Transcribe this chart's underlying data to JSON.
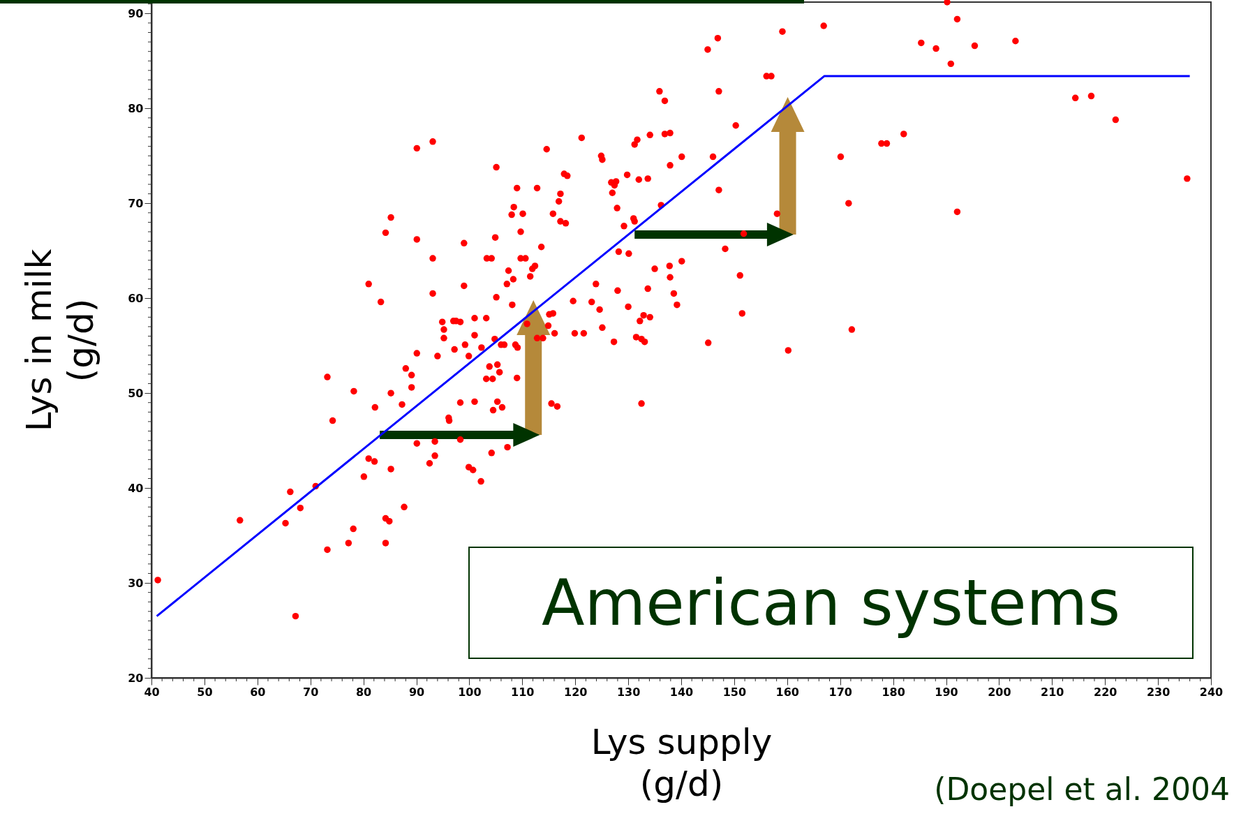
{
  "chart_data": {
    "type": "scatter",
    "xlabel": "Lys supply\n(g/d)",
    "ylabel": "Lys in milk\n(g/d)",
    "annotations": [
      "American systems",
      "(Doepel et al. 2004"
    ],
    "xlim": [
      40,
      240
    ],
    "ylim": [
      20,
      91.2
    ],
    "xticks": [
      40,
      {
        "value": 42,
        "label": null
      },
      {
        "value": 44,
        "label": null
      },
      {
        "value": 46,
        "label": null
      },
      {
        "value": 48,
        "label": null
      },
      50,
      {
        "value": 52,
        "label": null
      },
      {
        "value": 54,
        "label": null
      },
      {
        "value": 56,
        "label": null
      },
      {
        "value": 58,
        "label": null
      },
      60,
      {
        "value": 62,
        "label": null
      },
      {
        "value": 64,
        "label": null
      },
      {
        "value": 66,
        "label": null
      },
      {
        "value": 68,
        "label": null
      },
      70,
      {
        "value": 72,
        "label": null
      },
      {
        "value": 74,
        "label": null
      },
      {
        "value": 76,
        "label": null
      },
      {
        "value": 78,
        "label": null
      },
      80,
      {
        "value": 82,
        "label": null
      },
      {
        "value": 84,
        "label": null
      },
      {
        "value": 86,
        "label": null
      },
      {
        "value": 88,
        "label": null
      },
      90,
      {
        "value": 92,
        "label": null
      },
      {
        "value": 94,
        "label": null
      },
      {
        "value": 96,
        "label": null
      },
      {
        "value": 98,
        "label": null
      },
      100,
      {
        "value": 102,
        "label": null
      },
      {
        "value": 104,
        "label": null
      },
      {
        "value": 106,
        "label": null
      },
      {
        "value": 108,
        "label": null
      },
      110,
      {
        "value": 112,
        "label": null
      },
      {
        "value": 114,
        "label": null
      },
      {
        "value": 116,
        "label": null
      },
      {
        "value": 118,
        "label": null
      },
      120,
      {
        "value": 122,
        "label": null
      },
      {
        "value": 124,
        "label": null
      },
      {
        "value": 126,
        "label": null
      },
      {
        "value": 128,
        "label": null
      },
      130,
      {
        "value": 132,
        "label": null
      },
      {
        "value": 134,
        "label": null
      },
      {
        "value": 136,
        "label": null
      },
      {
        "value": 138,
        "label": null
      },
      140,
      {
        "value": 142,
        "label": null
      },
      {
        "value": 144,
        "label": null
      },
      {
        "value": 146,
        "label": null
      },
      {
        "value": 148,
        "label": null
      },
      150,
      {
        "value": 152,
        "label": null
      },
      {
        "value": 154,
        "label": null
      },
      {
        "value": 156,
        "label": null
      },
      {
        "value": 158,
        "label": null
      },
      160,
      {
        "value": 162,
        "label": null
      },
      {
        "value": 164,
        "label": null
      },
      {
        "value": 166,
        "label": null
      },
      {
        "value": 168,
        "label": null
      },
      170,
      {
        "value": 172,
        "label": null
      },
      {
        "value": 174,
        "label": null
      },
      {
        "value": 176,
        "label": null
      },
      {
        "value": 178,
        "label": null
      },
      180,
      {
        "value": 182,
        "label": null
      },
      {
        "value": 184,
        "label": null
      },
      {
        "value": 186,
        "label": null
      },
      {
        "value": 188,
        "label": null
      },
      190,
      {
        "value": 192,
        "label": null
      },
      {
        "value": 194,
        "label": null
      },
      {
        "value": 196,
        "label": null
      },
      {
        "value": 198,
        "label": null
      },
      200,
      {
        "value": 202,
        "label": null
      },
      {
        "value": 204,
        "label": null
      },
      {
        "value": 206,
        "label": null
      },
      {
        "value": 208,
        "label": null
      },
      210,
      {
        "value": 212,
        "label": null
      },
      {
        "value": 214,
        "label": null
      },
      {
        "value": 216,
        "label": null
      },
      {
        "value": 218,
        "label": null
      },
      220,
      {
        "value": 222,
        "label": null
      },
      {
        "value": 224,
        "label": null
      },
      {
        "value": 226,
        "label": null
      },
      {
        "value": 228,
        "label": null
      },
      230,
      {
        "value": 232,
        "label": null
      },
      {
        "value": 234,
        "label": null
      },
      {
        "value": 236,
        "label": null
      },
      {
        "value": 238,
        "label": null
      },
      240
    ],
    "yticks": [
      20,
      {
        "value": 21,
        "label": null
      },
      {
        "value": 22,
        "label": null
      },
      {
        "value": 23,
        "label": null
      },
      {
        "value": 24,
        "label": null
      },
      {
        "value": 25,
        "label": null
      },
      {
        "value": 26,
        "label": null
      },
      {
        "value": 27,
        "label": null
      },
      {
        "value": 28,
        "label": null
      },
      {
        "value": 29,
        "label": null
      },
      30,
      {
        "value": 31,
        "label": null
      },
      {
        "value": 32,
        "label": null
      },
      {
        "value": 33,
        "label": null
      },
      {
        "value": 34,
        "label": null
      },
      {
        "value": 35,
        "label": null
      },
      {
        "value": 36,
        "label": null
      },
      {
        "value": 37,
        "label": null
      },
      {
        "value": 38,
        "label": null
      },
      {
        "value": 39,
        "label": null
      },
      40,
      {
        "value": 41,
        "label": null
      },
      {
        "value": 42,
        "label": null
      },
      {
        "value": 43,
        "label": null
      },
      {
        "value": 44,
        "label": null
      },
      {
        "value": 45,
        "label": null
      },
      {
        "value": 46,
        "label": null
      },
      {
        "value": 47,
        "label": null
      },
      {
        "value": 48,
        "label": null
      },
      {
        "value": 49,
        "label": null
      },
      50,
      {
        "value": 51,
        "label": null
      },
      {
        "value": 52,
        "label": null
      },
      {
        "value": 53,
        "label": null
      },
      {
        "value": 54,
        "label": null
      },
      {
        "value": 55,
        "label": null
      },
      {
        "value": 56,
        "label": null
      },
      {
        "value": 57,
        "label": null
      },
      {
        "value": 58,
        "label": null
      },
      {
        "value": 59,
        "label": null
      },
      60,
      {
        "value": 61,
        "label": null
      },
      {
        "value": 62,
        "label": null
      },
      {
        "value": 63,
        "label": null
      },
      {
        "value": 64,
        "label": null
      },
      {
        "value": 65,
        "label": null
      },
      {
        "value": 66,
        "label": null
      },
      {
        "value": 67,
        "label": null
      },
      {
        "value": 68,
        "label": null
      },
      {
        "value": 69,
        "label": null
      },
      70,
      {
        "value": 71,
        "label": null
      },
      {
        "value": 72,
        "label": null
      },
      {
        "value": 73,
        "label": null
      },
      {
        "value": 74,
        "label": null
      },
      {
        "value": 75,
        "label": null
      },
      {
        "value": 76,
        "label": null
      },
      {
        "value": 77,
        "label": null
      },
      {
        "value": 78,
        "label": null
      },
      {
        "value": 79,
        "label": null
      },
      80,
      {
        "value": 81,
        "label": null
      },
      {
        "value": 82,
        "label": null
      },
      {
        "value": 83,
        "label": null
      },
      {
        "value": 84,
        "label": null
      },
      {
        "value": 85,
        "label": null
      },
      {
        "value": 86,
        "label": null
      },
      {
        "value": 87,
        "label": null
      },
      {
        "value": 88,
        "label": null
      },
      {
        "value": 89,
        "label": null
      },
      90,
      {
        "value": 91,
        "label": null
      }
    ],
    "series": [
      {
        "marker": "circle",
        "color": "#ff0000",
        "x": [
          41.2,
          56.7,
          65.3,
          66.2,
          67.2,
          68.1,
          71.0,
          73.2,
          73.2,
          74.2,
          77.2,
          78.1,
          78.2,
          80.1,
          81.0,
          81.0,
          82.1,
          82.2,
          83.3,
          84.2,
          85.2,
          84.2,
          84.9,
          84.2,
          85.2,
          85.2,
          87.3,
          87.7,
          88.0,
          89.1,
          89.1,
          90.1,
          90.1,
          90.1,
          90.1,
          92.5,
          93.1,
          93.1,
          93.1,
          93.5,
          93.5,
          94.0,
          94.9,
          95.2,
          95.2,
          96.1,
          96.2,
          97.0,
          97.2,
          97.5,
          98.3,
          98.3,
          98.3,
          99.0,
          99.0,
          99.2,
          99.9,
          99.9,
          100.7,
          101.0,
          101.0,
          101.0,
          102.2,
          102.3,
          103.2,
          103.3,
          103.2,
          103.8,
          104.2,
          104.2,
          104.4,
          104.5,
          104.8,
          104.9,
          105.1,
          105.1,
          105.3,
          105.3,
          105.7,
          106.0,
          106.2,
          106.6,
          107.1,
          107.2,
          107.4,
          108.0,
          108.1,
          108.3,
          108.4,
          108.7,
          109.0,
          109.0,
          109.1,
          109.7,
          109.7,
          110.1,
          110.6,
          110.9,
          111.5,
          111.9,
          112.4,
          112.8,
          112.8,
          113.6,
          113.9,
          114.6,
          114.9,
          115.1,
          115.5,
          115.8,
          115.8,
          116.1,
          116.6,
          116.9,
          117.2,
          117.2,
          117.9,
          118.2,
          118.5,
          119.6,
          119.9,
          121.2,
          121.6,
          123.1,
          123.9,
          124.6,
          124.9,
          125.1,
          125.1,
          126.8,
          127.0,
          127.3,
          127.4,
          127.7,
          127.9,
          128.0,
          128.2,
          129.2,
          129.8,
          130.0,
          130.1,
          131.0,
          131.2,
          131.2,
          131.5,
          131.7,
          132.0,
          132.2,
          132.5,
          132.5,
          132.9,
          133.1,
          133.7,
          133.7,
          134.1,
          134.1,
          135.0,
          135.9,
          136.2,
          136.9,
          136.9,
          137.9,
          137.9,
          137.8,
          137.9,
          138.6,
          139.2,
          140.1,
          140.1,
          145.0,
          145.1,
          146.0,
          146.9,
          147.1,
          147.1,
          148.3,
          150.3,
          151.1,
          151.5,
          151.8,
          156.1,
          157.0,
          158.1,
          159.1,
          160.2,
          166.9,
          170.1,
          171.6,
          172.2,
          177.8,
          178.8,
          182.0,
          185.3,
          188.1,
          190.2,
          190.9,
          192.1,
          192.1,
          195.4,
          203.1,
          214.4,
          217.4,
          222.0,
          235.5
        ],
        "values": [
          30.3,
          36.6,
          36.3,
          39.6,
          26.5,
          37.9,
          40.2,
          33.5,
          51.7,
          47.1,
          34.2,
          35.7,
          50.2,
          41.2,
          43.1,
          61.5,
          42.8,
          48.5,
          59.6,
          66.9,
          68.5,
          36.8,
          36.5,
          34.2,
          42.0,
          50.0,
          48.8,
          38.0,
          52.6,
          51.9,
          50.6,
          75.8,
          66.2,
          54.2,
          44.7,
          42.6,
          76.5,
          64.2,
          60.5,
          44.9,
          43.4,
          53.9,
          57.5,
          56.7,
          55.8,
          47.4,
          47.1,
          57.6,
          54.6,
          57.6,
          57.5,
          49.0,
          45.1,
          65.8,
          61.3,
          55.1,
          53.9,
          42.2,
          41.9,
          57.9,
          56.1,
          49.1,
          40.7,
          54.8,
          57.9,
          64.2,
          51.5,
          52.8,
          64.2,
          43.7,
          51.5,
          48.2,
          55.7,
          66.4,
          73.8,
          60.1,
          53.0,
          49.1,
          52.2,
          55.1,
          48.5,
          55.1,
          61.5,
          44.3,
          62.9,
          68.8,
          59.3,
          62.0,
          69.6,
          55.1,
          71.6,
          51.6,
          54.8,
          67.0,
          64.2,
          68.9,
          64.2,
          57.3,
          62.3,
          63.1,
          63.4,
          71.6,
          55.8,
          65.4,
          55.8,
          75.7,
          57.1,
          58.3,
          48.9,
          68.9,
          58.4,
          56.3,
          48.6,
          70.2,
          71.0,
          68.1,
          73.1,
          67.9,
          72.9,
          59.7,
          56.3,
          76.9,
          56.3,
          59.6,
          61.5,
          58.8,
          75.0,
          74.6,
          56.9,
          72.2,
          71.1,
          55.4,
          71.9,
          72.3,
          69.5,
          60.8,
          64.9,
          67.6,
          73.0,
          59.1,
          64.7,
          68.4,
          76.2,
          68.1,
          55.9,
          76.7,
          72.5,
          57.6,
          55.7,
          48.9,
          58.2,
          55.4,
          72.6,
          61.0,
          77.2,
          58.0,
          63.1,
          81.8,
          69.8,
          80.8,
          77.3,
          77.4,
          74.0,
          63.4,
          62.2,
          60.5,
          59.3,
          74.9,
          63.9,
          86.2,
          55.3,
          74.9,
          87.4,
          81.8,
          71.4,
          65.2,
          78.2,
          62.4,
          58.4,
          66.8,
          83.4,
          83.4,
          68.9,
          88.1,
          54.5,
          88.7,
          74.9,
          70.0,
          56.7,
          76.3,
          76.3,
          77.3,
          86.9,
          86.3,
          91.2,
          84.7,
          89.4,
          69.1,
          86.6,
          87.1,
          81.1,
          81.3,
          78.8,
          72.6
        ]
      },
      {
        "type": "line",
        "marker": "none",
        "color": "#0000ff",
        "x": [
          41,
          167,
          236
        ],
        "values": [
          26.5,
          83.4,
          83.4
        ]
      }
    ]
  }
}
